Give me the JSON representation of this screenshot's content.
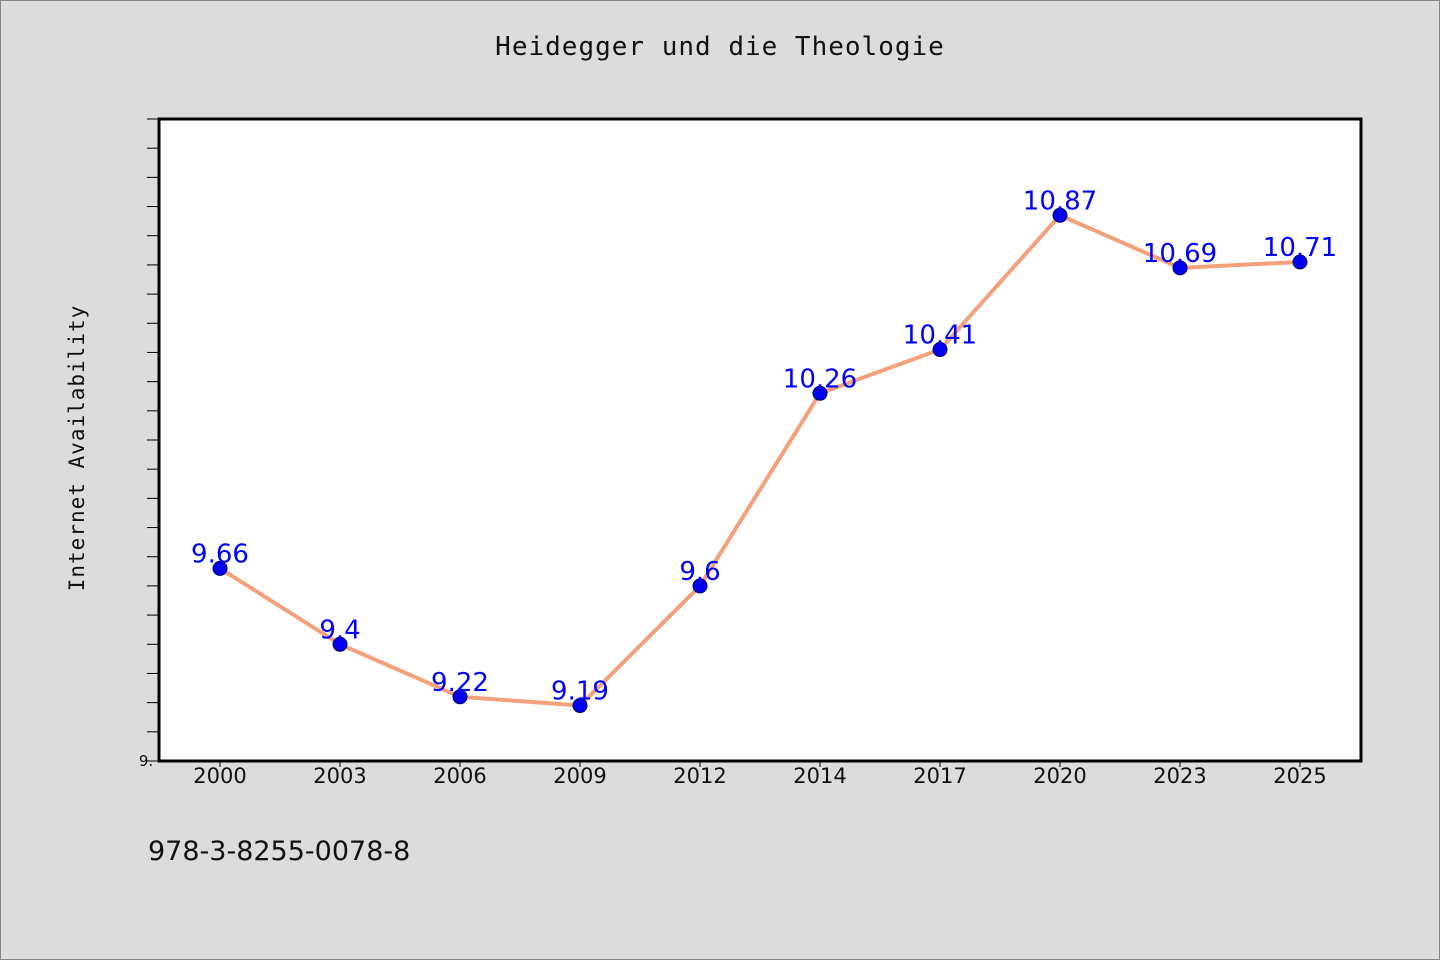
{
  "chart_data": {
    "type": "line",
    "title": "Heidegger und die Theologie",
    "xlabel": "",
    "ylabel": "Internet Availability",
    "categories": [
      "2000",
      "2003",
      "2006",
      "2009",
      "2012",
      "2014",
      "2017",
      "2020",
      "2023",
      "2025"
    ],
    "series": [
      {
        "values": [
          9.66,
          9.4,
          9.22,
          9.19,
          9.6,
          10.26,
          10.41,
          10.87,
          10.69,
          10.71
        ],
        "data_labels": [
          "9.66",
          "9.4",
          "9.22",
          "9.19",
          "9.6",
          "10.26",
          "10.41",
          "10.87",
          "10.69",
          "10.71"
        ]
      }
    ],
    "ylim": [
      9.0,
      11.2
    ],
    "y_tick_labels": [
      "9."
    ],
    "grid": false,
    "legend": "none",
    "colors": {
      "line": "#f4a07c",
      "marker": "#0000ee",
      "data_label": "#0000ff",
      "plot_background": "#ffffff",
      "figure_background": "#dcdcdc"
    }
  },
  "footer": {
    "code": "978-3-8255-0078-8"
  }
}
